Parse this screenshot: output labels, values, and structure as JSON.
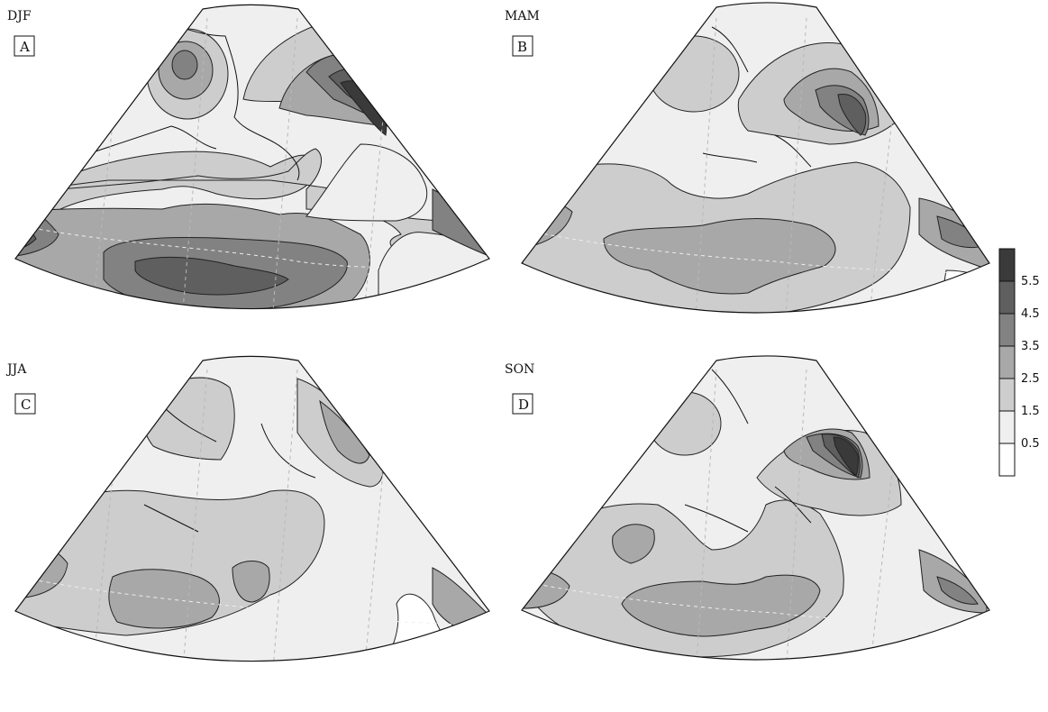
{
  "panels": [
    {
      "season": "DJF",
      "letter": "A"
    },
    {
      "season": "MAM",
      "letter": "B"
    },
    {
      "season": "JJA",
      "letter": "C"
    },
    {
      "season": "SON",
      "letter": "D"
    }
  ],
  "colorbar": {
    "levels": [
      "5.5",
      "4.5",
      "3.5",
      "2.5",
      "1.5",
      "0.5"
    ],
    "fills": [
      "#3a3a3a",
      "#5f5f5f",
      "#828282",
      "#a8a8a8",
      "#cdcdcd",
      "#efefef",
      "#ffffff"
    ]
  }
}
